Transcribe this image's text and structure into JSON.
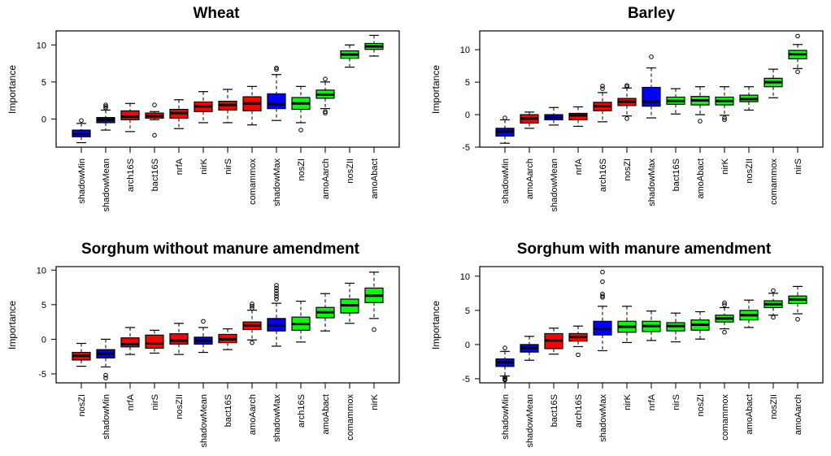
{
  "colors": {
    "shadow": "#0000FF",
    "rejected": "#FF0000",
    "confirmed": "#00FF00",
    "outline": "#000000"
  },
  "chart_data": [
    {
      "type": "box",
      "title": "Wheat",
      "xlabel": "",
      "ylabel": "Importance",
      "ylim": [
        -3.8,
        11.9
      ],
      "yticks": [
        0,
        5,
        10
      ],
      "categories": [
        "shadowMin",
        "shadowMean",
        "arch16S",
        "bact16S",
        "nrfA",
        "nirK",
        "nirS",
        "comammox",
        "shadowMax",
        "nosZI",
        "amoAarch",
        "nosZII",
        "amoAbact"
      ],
      "boxes": [
        {
          "label": "shadowMin",
          "status": "shadow",
          "q1": -2.4,
          "median": -2.0,
          "q3": -1.5,
          "lo": -3.2,
          "hi": -0.6,
          "outliers": [
            -0.2
          ]
        },
        {
          "label": "shadowMean",
          "status": "shadow",
          "q1": -0.5,
          "median": -0.1,
          "q3": 0.2,
          "lo": -1.5,
          "hi": 1.2,
          "outliers": [
            1.5,
            1.7,
            1.9
          ]
        },
        {
          "label": "arch16S",
          "status": "rejected",
          "q1": -0.1,
          "median": 0.3,
          "q3": 1.1,
          "lo": -1.7,
          "hi": 2.1,
          "outliers": []
        },
        {
          "label": "bact16S",
          "status": "rejected",
          "q1": 0.1,
          "median": 0.4,
          "q3": 0.8,
          "lo": -0.1,
          "hi": 1.0,
          "outliers": [
            1.9,
            -2.2
          ]
        },
        {
          "label": "nrfA",
          "status": "rejected",
          "q1": 0.1,
          "median": 0.8,
          "q3": 1.3,
          "lo": -1.3,
          "hi": 2.6,
          "outliers": []
        },
        {
          "label": "nirK",
          "status": "rejected",
          "q1": 1.0,
          "median": 1.7,
          "q3": 2.3,
          "lo": -0.5,
          "hi": 3.7,
          "outliers": []
        },
        {
          "label": "nirS",
          "status": "rejected",
          "q1": 1.2,
          "median": 1.9,
          "q3": 2.4,
          "lo": -0.5,
          "hi": 4.0,
          "outliers": []
        },
        {
          "label": "comammox",
          "status": "rejected",
          "q1": 1.1,
          "median": 2.1,
          "q3": 3.0,
          "lo": -0.8,
          "hi": 4.4,
          "outliers": []
        },
        {
          "label": "shadowMax",
          "status": "shadow",
          "q1": 1.4,
          "median": 2.0,
          "q3": 3.4,
          "lo": -0.2,
          "hi": 6.0,
          "outliers": [
            6.7,
            6.9
          ]
        },
        {
          "label": "nosZI",
          "status": "confirmed",
          "q1": 1.3,
          "median": 2.1,
          "q3": 2.9,
          "lo": -0.5,
          "hi": 4.4,
          "outliers": [
            -1.5
          ]
        },
        {
          "label": "amoAarch",
          "status": "confirmed",
          "q1": 2.8,
          "median": 3.3,
          "q3": 3.9,
          "lo": 1.4,
          "hi": 5.0,
          "outliers": [
            1.0,
            0.8,
            5.4
          ]
        },
        {
          "label": "nosZII",
          "status": "confirmed",
          "q1": 8.2,
          "median": 8.7,
          "q3": 9.2,
          "lo": 7.0,
          "hi": 10.0,
          "outliers": []
        },
        {
          "label": "amoAbact",
          "status": "confirmed",
          "q1": 9.4,
          "median": 9.8,
          "q3": 10.2,
          "lo": 8.5,
          "hi": 11.3,
          "outliers": []
        }
      ]
    },
    {
      "type": "box",
      "title": "Barley",
      "xlabel": "",
      "ylabel": "Importance",
      "ylim": [
        -5,
        12.9
      ],
      "yticks": [
        -5,
        0,
        5,
        10
      ],
      "categories": [
        "shadowMin",
        "amoAarch",
        "shadowMean",
        "nrfA",
        "arch16S",
        "nosZI",
        "shadowMax",
        "bact16S",
        "amoAbact",
        "nirK",
        "nosZII",
        "comammox",
        "nirS"
      ],
      "boxes": [
        {
          "label": "shadowMin",
          "status": "shadow",
          "q1": -3.3,
          "median": -2.6,
          "q3": -2.1,
          "lo": -4.4,
          "hi": -0.8,
          "outliers": [
            -0.5
          ]
        },
        {
          "label": "amoAarch",
          "status": "rejected",
          "q1": -1.3,
          "median": -0.6,
          "q3": 0.0,
          "lo": -2.1,
          "hi": 0.4,
          "outliers": []
        },
        {
          "label": "shadowMean",
          "status": "shadow",
          "q1": -0.8,
          "median": -0.4,
          "q3": 0.0,
          "lo": -1.6,
          "hi": 1.1,
          "outliers": []
        },
        {
          "label": "nrfA",
          "status": "rejected",
          "q1": -0.8,
          "median": -0.1,
          "q3": 0.2,
          "lo": -1.8,
          "hi": 1.2,
          "outliers": []
        },
        {
          "label": "arch16S",
          "status": "rejected",
          "q1": 0.6,
          "median": 1.3,
          "q3": 1.9,
          "lo": -1.1,
          "hi": 3.4,
          "outliers": [
            4.0,
            4.4
          ]
        },
        {
          "label": "nosZI",
          "status": "rejected",
          "q1": 1.4,
          "median": 2.0,
          "q3": 2.5,
          "lo": -0.2,
          "hi": 4.1,
          "outliers": [
            4.3,
            4.5,
            -0.6
          ]
        },
        {
          "label": "shadowMax",
          "status": "shadow",
          "q1": 1.3,
          "median": 2.0,
          "q3": 4.2,
          "lo": -0.5,
          "hi": 7.2,
          "outliers": [
            8.9
          ]
        },
        {
          "label": "bact16S",
          "status": "confirmed",
          "q1": 1.6,
          "median": 2.1,
          "q3": 2.7,
          "lo": 0.1,
          "hi": 4.0,
          "outliers": []
        },
        {
          "label": "amoAbact",
          "status": "confirmed",
          "q1": 1.5,
          "median": 2.2,
          "q3": 2.8,
          "lo": 0.0,
          "hi": 4.3,
          "outliers": [
            -1.0
          ]
        },
        {
          "label": "nirK",
          "status": "confirmed",
          "q1": 1.5,
          "median": 2.1,
          "q3": 2.7,
          "lo": -0.1,
          "hi": 4.3,
          "outliers": [
            -0.5,
            -0.8
          ]
        },
        {
          "label": "nosZII",
          "status": "confirmed",
          "q1": 2.0,
          "median": 2.4,
          "q3": 3.0,
          "lo": 0.7,
          "hi": 4.3,
          "outliers": []
        },
        {
          "label": "comammox",
          "status": "confirmed",
          "q1": 4.3,
          "median": 5.0,
          "q3": 5.6,
          "lo": 2.6,
          "hi": 7.0,
          "outliers": []
        },
        {
          "label": "nirS",
          "status": "confirmed",
          "q1": 8.6,
          "median": 9.3,
          "q3": 9.9,
          "lo": 7.1,
          "hi": 10.8,
          "outliers": [
            12.1,
            6.6
          ]
        }
      ]
    },
    {
      "type": "box",
      "title": "Sorghum without manure amendment",
      "xlabel": "",
      "ylabel": "Importance",
      "ylim": [
        -6.3,
        10.5
      ],
      "yticks": [
        -5,
        0,
        5,
        10
      ],
      "categories": [
        "nosZI",
        "shadowMin",
        "nrfA",
        "nirS",
        "nosZII",
        "shadowMean",
        "bact16S",
        "amoAarch",
        "shadowMax",
        "arch16S",
        "amoAbact",
        "comammox",
        "nirK"
      ],
      "boxes": [
        {
          "label": "nosZI",
          "status": "rejected",
          "q1": -3.0,
          "median": -2.4,
          "q3": -1.9,
          "lo": -3.9,
          "hi": -0.6,
          "outliers": []
        },
        {
          "label": "shadowMin",
          "status": "shadow",
          "q1": -2.7,
          "median": -2.1,
          "q3": -1.5,
          "lo": -4.0,
          "hi": 0.0,
          "outliers": [
            -5.2,
            -5.6
          ]
        },
        {
          "label": "nrfA",
          "status": "rejected",
          "q1": -1.1,
          "median": -0.7,
          "q3": 0.2,
          "lo": -2.2,
          "hi": 1.7,
          "outliers": []
        },
        {
          "label": "nirS",
          "status": "rejected",
          "q1": -1.3,
          "median": -0.6,
          "q3": 0.6,
          "lo": -2.0,
          "hi": 1.3,
          "outliers": []
        },
        {
          "label": "nosZII",
          "status": "rejected",
          "q1": -0.7,
          "median": -0.2,
          "q3": 0.8,
          "lo": -2.2,
          "hi": 2.3,
          "outliers": []
        },
        {
          "label": "shadowMean",
          "status": "shadow",
          "q1": -0.7,
          "median": -0.2,
          "q3": 0.3,
          "lo": -1.9,
          "hi": 1.7,
          "outliers": [
            2.6
          ]
        },
        {
          "label": "bact16S",
          "status": "rejected",
          "q1": -0.5,
          "median": 0.0,
          "q3": 0.7,
          "lo": -1.5,
          "hi": 1.5,
          "outliers": []
        },
        {
          "label": "amoAarch",
          "status": "rejected",
          "q1": 1.4,
          "median": 2.0,
          "q3": 2.5,
          "lo": -0.1,
          "hi": 4.2,
          "outliers": [
            4.5,
            4.8,
            5.1,
            -0.5
          ]
        },
        {
          "label": "shadowMax",
          "status": "shadow",
          "q1": 1.2,
          "median": 2.0,
          "q3": 3.0,
          "lo": -1.0,
          "hi": 5.2,
          "outliers": [
            5.8,
            6.2,
            6.6,
            7.0,
            7.4,
            7.8
          ]
        },
        {
          "label": "arch16S",
          "status": "confirmed",
          "q1": 1.3,
          "median": 2.2,
          "q3": 3.2,
          "lo": -0.4,
          "hi": 5.5,
          "outliers": []
        },
        {
          "label": "amoAbact",
          "status": "confirmed",
          "q1": 3.1,
          "median": 3.9,
          "q3": 4.6,
          "lo": 1.2,
          "hi": 6.6,
          "outliers": []
        },
        {
          "label": "comammox",
          "status": "confirmed",
          "q1": 3.8,
          "median": 4.9,
          "q3": 5.8,
          "lo": 2.3,
          "hi": 8.1,
          "outliers": []
        },
        {
          "label": "nirK",
          "status": "confirmed",
          "q1": 5.3,
          "median": 6.3,
          "q3": 7.4,
          "lo": 3.0,
          "hi": 9.7,
          "outliers": [
            1.4
          ]
        }
      ]
    },
    {
      "type": "box",
      "title": "Sorghum with manure amendment",
      "xlabel": "",
      "ylabel": "Importance",
      "ylim": [
        -5.6,
        11.4
      ],
      "yticks": [
        -5,
        0,
        5,
        10
      ],
      "categories": [
        "shadowMin",
        "shadowMean",
        "bact16S",
        "arch16S",
        "shadowMax",
        "nirK",
        "nrfA",
        "nirS",
        "nosZI",
        "comammox",
        "amoAbact",
        "nosZII",
        "amoAarch"
      ],
      "boxes": [
        {
          "label": "shadowMin",
          "status": "shadow",
          "q1": -3.2,
          "median": -2.6,
          "q3": -2.1,
          "lo": -4.6,
          "hi": -1.0,
          "outliers": [
            -0.5,
            -4.8,
            -5.0,
            -5.1,
            -5.2
          ]
        },
        {
          "label": "shadowMean",
          "status": "shadow",
          "q1": -1.1,
          "median": -0.5,
          "q3": 0.0,
          "lo": -2.3,
          "hi": 1.2,
          "outliers": []
        },
        {
          "label": "bact16S",
          "status": "rejected",
          "q1": -0.6,
          "median": 0.6,
          "q3": 1.6,
          "lo": -1.4,
          "hi": 2.4,
          "outliers": []
        },
        {
          "label": "arch16S",
          "status": "rejected",
          "q1": 0.5,
          "median": 1.1,
          "q3": 1.6,
          "lo": -0.3,
          "hi": 2.7,
          "outliers": [
            -1.5
          ]
        },
        {
          "label": "shadowMax",
          "status": "shadow",
          "q1": 1.4,
          "median": 2.3,
          "q3": 3.4,
          "lo": -0.9,
          "hi": 5.6,
          "outliers": [
            6.9,
            7.1,
            7.4,
            9.2,
            10.6
          ]
        },
        {
          "label": "nirK",
          "status": "confirmed",
          "q1": 1.8,
          "median": 2.6,
          "q3": 3.4,
          "lo": 0.3,
          "hi": 5.6,
          "outliers": []
        },
        {
          "label": "nrfA",
          "status": "confirmed",
          "q1": 1.9,
          "median": 2.7,
          "q3": 3.4,
          "lo": 0.6,
          "hi": 4.9,
          "outliers": []
        },
        {
          "label": "nirS",
          "status": "confirmed",
          "q1": 2.0,
          "median": 2.7,
          "q3": 3.2,
          "lo": 0.4,
          "hi": 4.6,
          "outliers": []
        },
        {
          "label": "nosZI",
          "status": "confirmed",
          "q1": 2.1,
          "median": 2.9,
          "q3": 3.6,
          "lo": 0.8,
          "hi": 4.8,
          "outliers": []
        },
        {
          "label": "comammox",
          "status": "confirmed",
          "q1": 3.3,
          "median": 3.8,
          "q3": 4.3,
          "lo": 2.3,
          "hi": 5.4,
          "outliers": [
            5.8,
            6.1,
            1.8
          ]
        },
        {
          "label": "amoAbact",
          "status": "confirmed",
          "q1": 3.6,
          "median": 4.3,
          "q3": 5.0,
          "lo": 2.5,
          "hi": 6.5,
          "outliers": []
        },
        {
          "label": "nosZII",
          "status": "confirmed",
          "q1": 5.4,
          "median": 5.9,
          "q3": 6.4,
          "lo": 4.3,
          "hi": 7.5,
          "outliers": [
            7.9,
            4.0
          ]
        },
        {
          "label": "amoAarch",
          "status": "confirmed",
          "q1": 6.0,
          "median": 6.6,
          "q3": 7.1,
          "lo": 4.5,
          "hi": 8.5,
          "outliers": [
            3.7
          ]
        }
      ]
    }
  ]
}
